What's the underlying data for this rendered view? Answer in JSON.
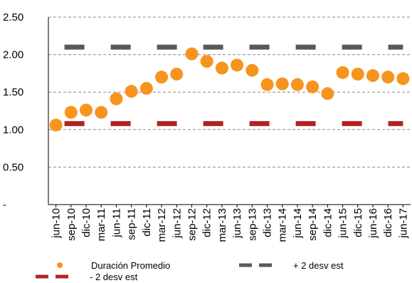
{
  "chart_data": {
    "type": "scatter",
    "categories": [
      "jun-10",
      "sep-10",
      "dic-10",
      "mar-11",
      "jun-11",
      "sep-11",
      "dic-11",
      "mar-12",
      "jun-12",
      "sep-12",
      "dic-12",
      "mar-13",
      "jun-13",
      "sep-13",
      "dic-13",
      "mar-14",
      "jun-14",
      "sep-14",
      "dic-14",
      "jun-15",
      "dic-15",
      "jun-16",
      "dic-16",
      "jun-17"
    ],
    "series": [
      {
        "name": "Duración Promedio",
        "color": "#f7941d",
        "style": "dots",
        "values": [
          1.06,
          1.23,
          1.26,
          1.23,
          1.41,
          1.51,
          1.55,
          1.7,
          1.74,
          2.01,
          1.91,
          1.82,
          1.86,
          1.79,
          1.6,
          1.61,
          1.6,
          1.57,
          1.48,
          1.76,
          1.74,
          1.72,
          1.7,
          1.68
        ]
      },
      {
        "name": "+ 2 desv est",
        "color": "#595959",
        "style": "dashed",
        "values": [
          2.1,
          2.1,
          2.1,
          2.1,
          2.1,
          2.1,
          2.1,
          2.1,
          2.1,
          2.1,
          2.1,
          2.1,
          2.1,
          2.1,
          2.1,
          2.1,
          2.1,
          2.1,
          2.1,
          2.1,
          2.1,
          2.1,
          2.1,
          2.1
        ]
      },
      {
        "name": "- 2 desv est",
        "color": "#b22222",
        "style": "dashed",
        "values": [
          1.08,
          1.08,
          1.08,
          1.08,
          1.08,
          1.08,
          1.08,
          1.08,
          1.08,
          1.08,
          1.08,
          1.08,
          1.08,
          1.08,
          1.08,
          1.08,
          1.08,
          1.08,
          1.08,
          1.08,
          1.08,
          1.08,
          1.08,
          1.08
        ]
      }
    ],
    "ylim": [
      0,
      2.5
    ],
    "yticks": [
      {
        "value": 0,
        "label": "-"
      },
      {
        "value": 0.5,
        "label": "0.50"
      },
      {
        "value": 1.0,
        "label": "1.00"
      },
      {
        "value": 1.5,
        "label": "1.50"
      },
      {
        "value": 2.0,
        "label": "2.00"
      },
      {
        "value": 2.5,
        "label": "2.50"
      }
    ],
    "grid": true,
    "legend": "bottom",
    "title": "",
    "xlabel": "",
    "ylabel": ""
  }
}
